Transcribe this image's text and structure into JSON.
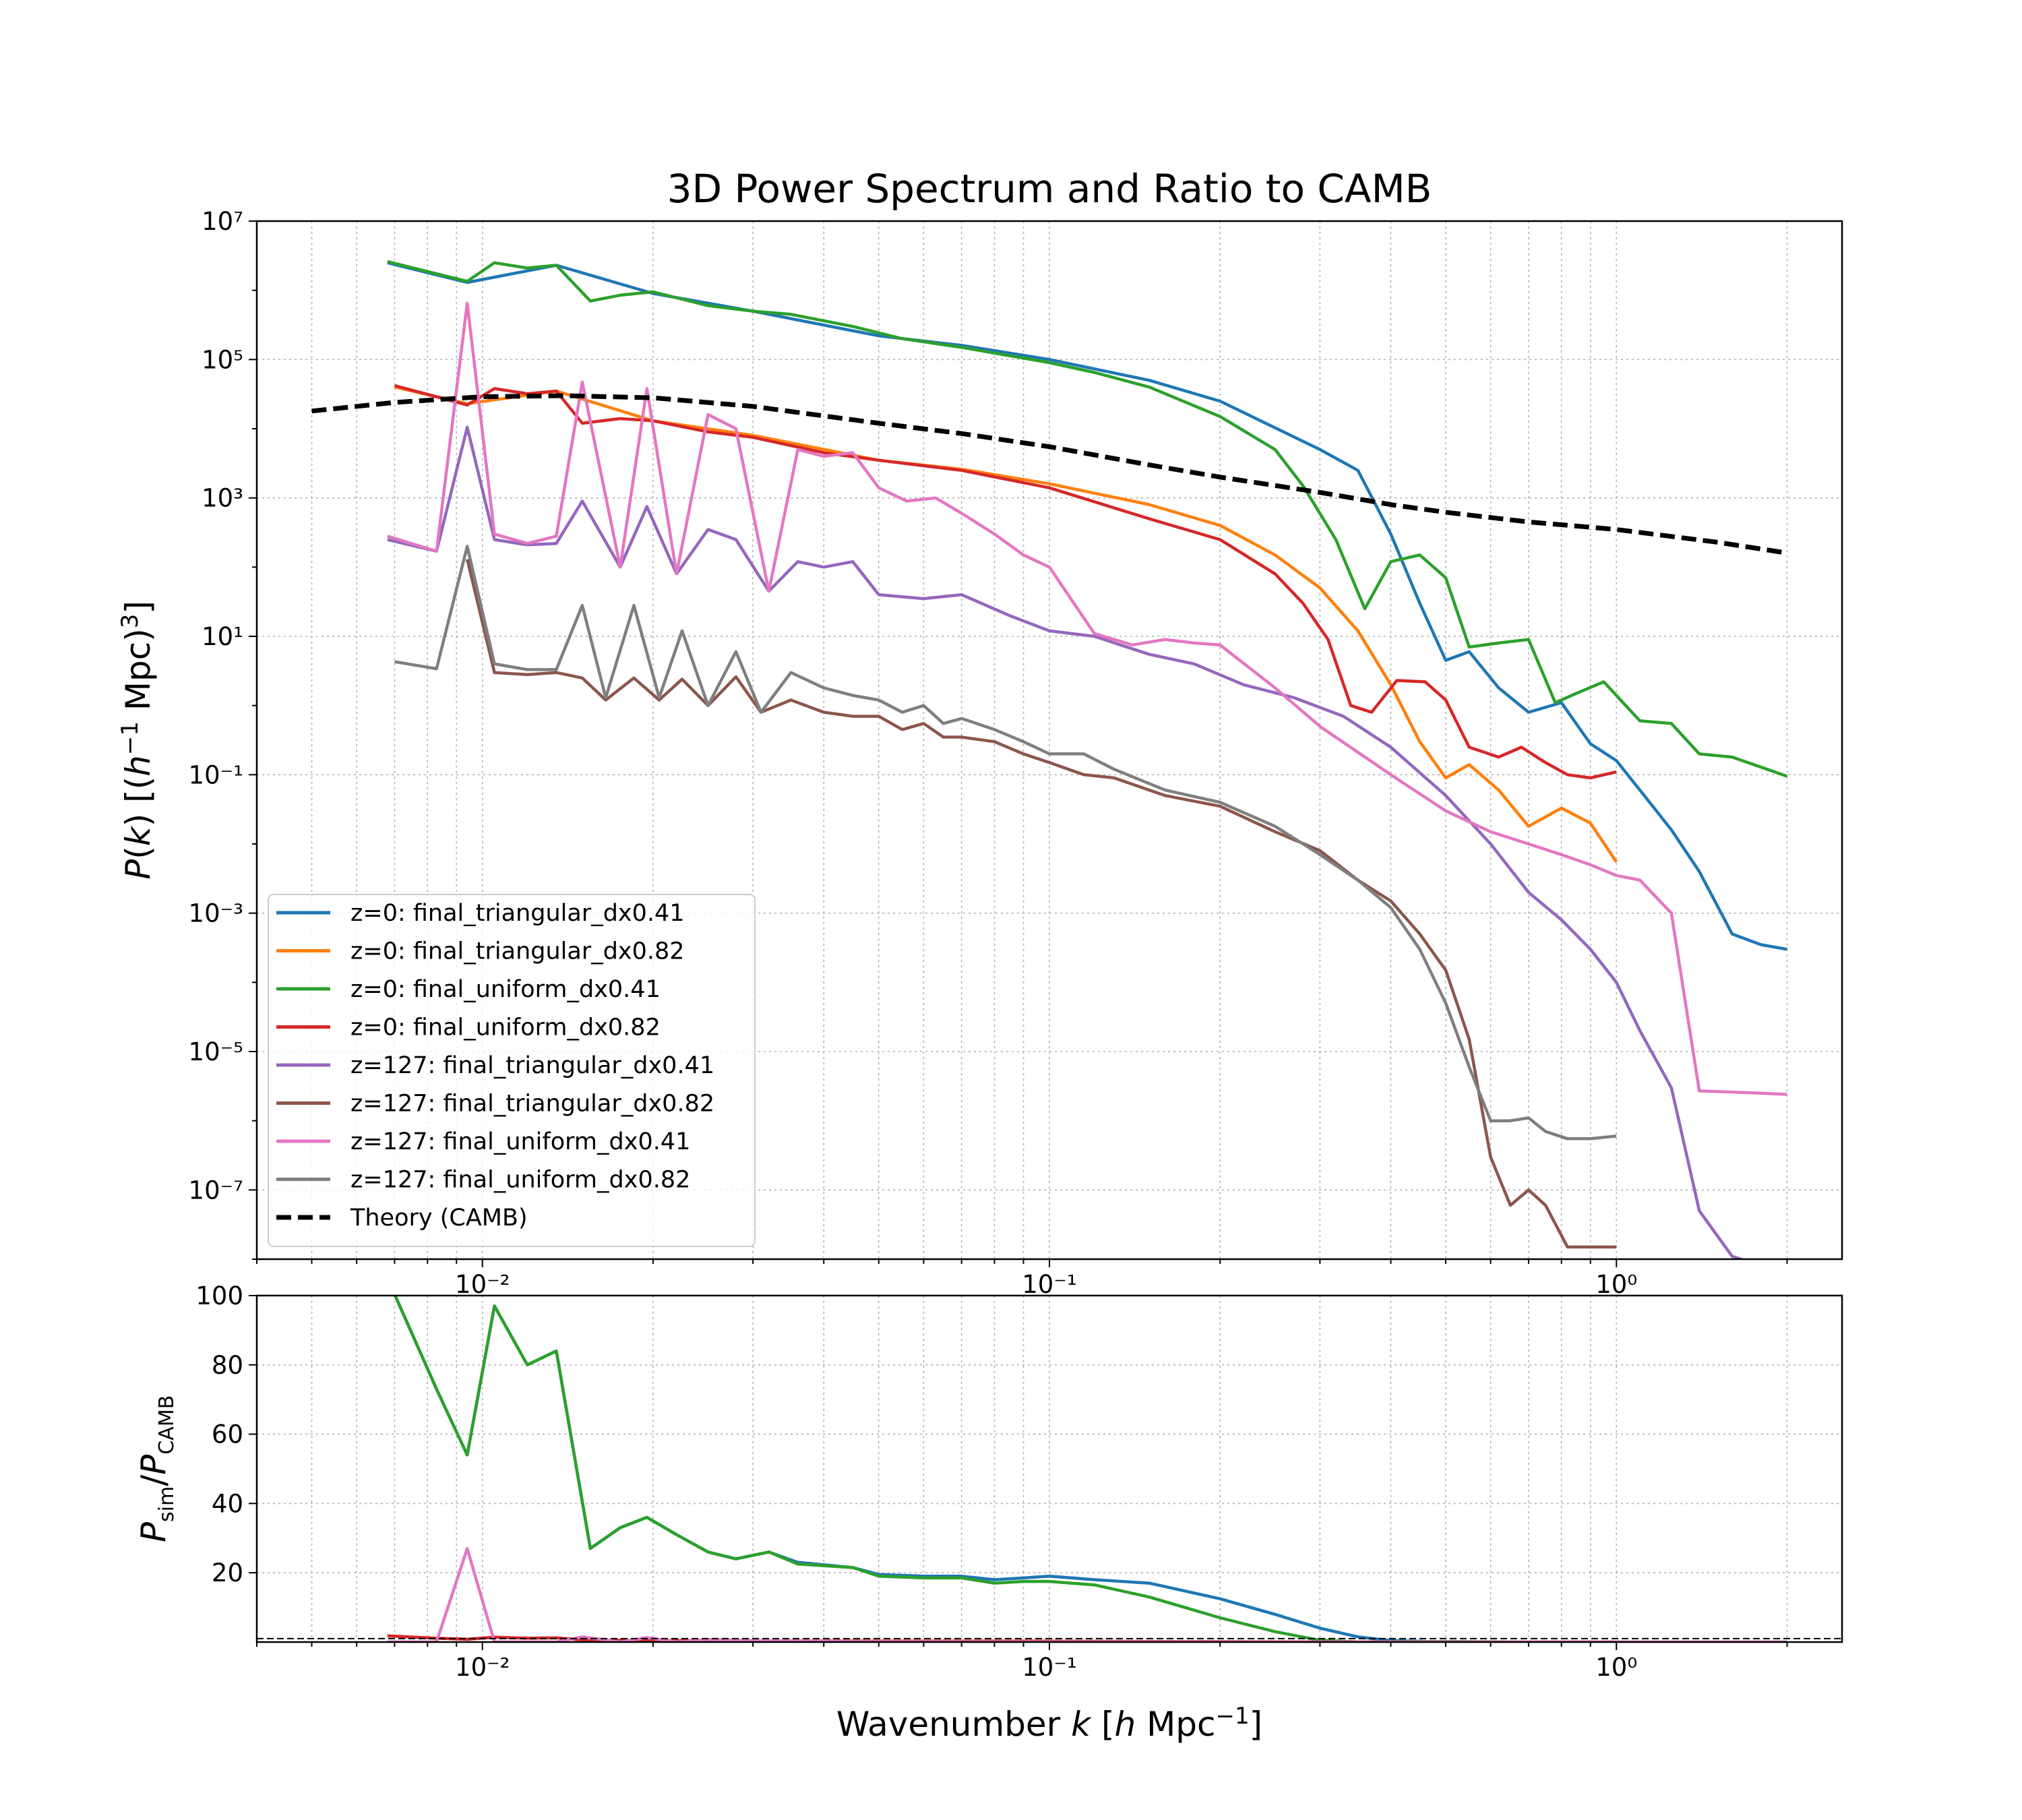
{
  "chart_data": [
    {
      "type": "line",
      "title": "3D Power Spectrum and Ratio to CAMB",
      "ylabel": "P(k) [(h⁻¹ Mpc)³]",
      "xscale": "log",
      "yscale": "log",
      "xlim": [
        0.004,
        2.5
      ],
      "ylim": [
        1e-08,
        10000000.0
      ],
      "x_ticks": [
        "10⁻²",
        "10⁻¹",
        "10⁰"
      ],
      "y_ticks": [
        "10⁻⁷",
        "10⁻⁵",
        "10⁻³",
        "10⁻¹",
        "10¹",
        "10³",
        "10⁵",
        "10⁷"
      ],
      "grid": true,
      "legend_position": "lower-left",
      "series": [
        {
          "name": "z=0: final_triangular_dx0.41",
          "color": "#1f77b4",
          "x": [
            0.0068,
            0.0094,
            0.0135,
            0.02,
            0.03,
            0.05,
            0.07,
            0.1,
            0.15,
            0.2,
            0.3,
            0.35,
            0.4,
            0.45,
            0.5,
            0.55,
            0.62,
            0.7,
            0.8,
            0.9,
            1.0,
            1.1,
            1.25,
            1.4,
            1.6,
            1.8,
            2.0
          ],
          "y": [
            2500000.0,
            1300000.0,
            2300000.0,
            900000.0,
            500000.0,
            220000.0,
            160000.0,
            100000.0,
            50000.0,
            25000.0,
            5000.0,
            2500.0,
            300,
            30,
            4.5,
            6,
            1.8,
            0.8,
            1.1,
            0.28,
            0.16,
            0.06,
            0.016,
            0.004,
            0.0005,
            0.00035,
            0.0003
          ]
        },
        {
          "name": "z=0: final_triangular_dx0.82",
          "color": "#ff7f0e",
          "x": [
            0.007,
            0.0094,
            0.0135,
            0.02,
            0.03,
            0.05,
            0.07,
            0.1,
            0.15,
            0.2,
            0.25,
            0.3,
            0.35,
            0.4,
            0.45,
            0.5,
            0.55,
            0.62,
            0.7,
            0.8,
            0.9,
            1.0
          ],
          "y": [
            40000.0,
            23000.0,
            35000.0,
            13000.0,
            8000.0,
            3500.0,
            2600.0,
            1600.0,
            800,
            400,
            150,
            50,
            12,
            2,
            0.3,
            0.09,
            0.14,
            0.06,
            0.018,
            0.033,
            0.02,
            0.0055
          ]
        },
        {
          "name": "z=0: final_uniform_dx0.41",
          "color": "#2ca02c",
          "x": [
            0.0068,
            0.0094,
            0.0105,
            0.012,
            0.0135,
            0.0155,
            0.0175,
            0.02,
            0.025,
            0.03,
            0.035,
            0.045,
            0.055,
            0.07,
            0.1,
            0.12,
            0.15,
            0.2,
            0.25,
            0.28,
            0.32,
            0.36,
            0.4,
            0.45,
            0.5,
            0.55,
            0.62,
            0.7,
            0.78,
            0.85,
            0.95,
            1.1,
            1.25,
            1.4,
            1.6,
            2.0
          ],
          "y": [
            2600000.0,
            1350000.0,
            2500000.0,
            2100000.0,
            2300000.0,
            700000.0,
            850000.0,
            950000.0,
            600000.0,
            500000.0,
            450000.0,
            300000.0,
            200000.0,
            150000.0,
            90000.0,
            65000.0,
            40000.0,
            15000.0,
            5000.0,
            1500.0,
            250,
            25,
            120,
            150,
            70,
            7,
            8,
            9,
            1.1,
            1.5,
            2.2,
            0.6,
            0.55,
            0.2,
            0.18,
            0.095
          ]
        },
        {
          "name": "z=0: final_uniform_dx0.82",
          "color": "#d62728",
          "x": [
            0.007,
            0.0094,
            0.0105,
            0.012,
            0.0135,
            0.015,
            0.0175,
            0.02,
            0.025,
            0.03,
            0.04,
            0.05,
            0.07,
            0.1,
            0.15,
            0.2,
            0.25,
            0.28,
            0.31,
            0.34,
            0.37,
            0.41,
            0.46,
            0.5,
            0.55,
            0.62,
            0.68,
            0.75,
            0.82,
            0.9,
            1.0
          ],
          "y": [
            42000.0,
            22000.0,
            38000.0,
            32000.0,
            35000.0,
            12000.0,
            14000.0,
            13000.0,
            9000.0,
            7500.0,
            4500.0,
            3500.0,
            2500.0,
            1400.0,
            500,
            250,
            80,
            30,
            9,
            1,
            0.8,
            2.3,
            2.2,
            1.2,
            0.25,
            0.18,
            0.25,
            0.15,
            0.1,
            0.09,
            0.11
          ]
        },
        {
          "name": "z=127: final_triangular_dx0.41",
          "color": "#9467bd",
          "x": [
            0.0068,
            0.0083,
            0.0094,
            0.0105,
            0.012,
            0.0135,
            0.015,
            0.0175,
            0.0195,
            0.022,
            0.025,
            0.028,
            0.032,
            0.036,
            0.04,
            0.045,
            0.05,
            0.06,
            0.07,
            0.085,
            0.1,
            0.12,
            0.15,
            0.18,
            0.22,
            0.27,
            0.33,
            0.4,
            0.5,
            0.6,
            0.7,
            0.8,
            0.9,
            1.0,
            1.1,
            1.25,
            1.4,
            1.6,
            1.8,
            2.0
          ],
          "y": [
            250,
            170,
            10500.0,
            250,
            210,
            220,
            900,
            100,
            750,
            80,
            350,
            250,
            45,
            120,
            100,
            120,
            40,
            35,
            40,
            20,
            12,
            10,
            5.5,
            4,
            2,
            1.3,
            0.7,
            0.25,
            0.05,
            0.01,
            0.002,
            0.0008,
            0.0003,
            0.0001,
            2e-05,
            3e-06,
            5e-08,
            1.1e-08,
            8e-09,
            6e-09
          ]
        },
        {
          "name": "z=127: final_triangular_dx0.82",
          "color": "#8c564b",
          "x": [
            0.0094,
            0.0105,
            0.012,
            0.0135,
            0.015,
            0.0165,
            0.0185,
            0.0205,
            0.0225,
            0.025,
            0.028,
            0.031,
            0.035,
            0.04,
            0.045,
            0.05,
            0.055,
            0.06,
            0.065,
            0.07,
            0.08,
            0.09,
            0.1,
            0.115,
            0.13,
            0.16,
            0.2,
            0.25,
            0.3,
            0.35,
            0.4,
            0.45,
            0.5,
            0.55,
            0.6,
            0.65,
            0.7,
            0.75,
            0.82,
            0.9,
            1.0
          ],
          "y": [
            130,
            3,
            2.8,
            3,
            2.5,
            1.2,
            2.5,
            1.2,
            2.4,
            1.0,
            2.6,
            0.8,
            1.2,
            0.8,
            0.7,
            0.7,
            0.45,
            0.55,
            0.35,
            0.35,
            0.3,
            0.2,
            0.15,
            0.1,
            0.09,
            0.05,
            0.035,
            0.015,
            0.008,
            0.003,
            0.0015,
            0.0005,
            0.00015,
            1.5e-05,
            3e-07,
            6e-08,
            1e-07,
            6e-08,
            1.5e-08,
            1.5e-08,
            1.5e-08
          ]
        },
        {
          "name": "z=127: final_uniform_dx0.41",
          "color": "#e377c2",
          "x": [
            0.0068,
            0.0083,
            0.0094,
            0.0105,
            0.012,
            0.0135,
            0.015,
            0.0175,
            0.0195,
            0.022,
            0.025,
            0.028,
            0.032,
            0.036,
            0.04,
            0.045,
            0.05,
            0.056,
            0.063,
            0.07,
            0.08,
            0.09,
            0.1,
            0.12,
            0.14,
            0.16,
            0.18,
            0.2,
            0.25,
            0.3,
            0.4,
            0.5,
            0.6,
            0.7,
            0.8,
            0.9,
            1.0,
            1.1,
            1.25,
            1.4,
            1.6,
            1.8,
            2.0
          ],
          "y": [
            280,
            170,
            650000.0,
            300,
            220,
            280,
            47000.0,
            100,
            38000.0,
            80,
            16000.0,
            10000.0,
            45,
            5000.0,
            4000.0,
            4500.0,
            1400.0,
            900,
            1000,
            600,
            300,
            150,
            100,
            11,
            7.5,
            9,
            8,
            7.5,
            1.8,
            0.5,
            0.1,
            0.03,
            0.015,
            0.01,
            0.007,
            0.005,
            0.0035,
            0.003,
            0.001,
            2.7e-06,
            2.6e-06,
            2.5e-06,
            2.4e-06
          ]
        },
        {
          "name": "z=127: final_uniform_dx0.82",
          "color": "#7f7f7f",
          "x": [
            0.007,
            0.0083,
            0.0094,
            0.0105,
            0.012,
            0.0135,
            0.015,
            0.0165,
            0.0185,
            0.0205,
            0.0225,
            0.025,
            0.028,
            0.031,
            0.035,
            0.04,
            0.045,
            0.05,
            0.055,
            0.06,
            0.065,
            0.07,
            0.08,
            0.09,
            0.1,
            0.115,
            0.13,
            0.16,
            0.2,
            0.25,
            0.3,
            0.35,
            0.4,
            0.45,
            0.5,
            0.55,
            0.6,
            0.65,
            0.7,
            0.75,
            0.82,
            0.9,
            1.0
          ],
          "y": [
            4.3,
            3.4,
            200,
            4,
            3.3,
            3.3,
            28,
            1.3,
            28,
            1.3,
            12,
            1.0,
            6,
            0.8,
            3,
            1.8,
            1.4,
            1.2,
            0.8,
            1.0,
            0.55,
            0.65,
            0.45,
            0.3,
            0.2,
            0.2,
            0.12,
            0.06,
            0.04,
            0.018,
            0.007,
            0.003,
            0.0012,
            0.0003,
            5e-05,
            6e-06,
            1e-06,
            1e-06,
            1.1e-06,
            7e-07,
            5.5e-07,
            5.5e-07,
            6e-07
          ]
        },
        {
          "name": "Theory (CAMB)",
          "color": "#000000",
          "dashed": true,
          "x": [
            0.005,
            0.007,
            0.01,
            0.014,
            0.02,
            0.03,
            0.05,
            0.07,
            0.1,
            0.15,
            0.2,
            0.3,
            0.4,
            0.5,
            0.7,
            1.0,
            1.5,
            2.0
          ],
          "y": [
            18000.0,
            24000.0,
            29000.0,
            30000.0,
            28000.0,
            21000.0,
            12000.0,
            8500.0,
            5500.0,
            3000.0,
            2000.0,
            1200.0,
            800,
            620,
            450,
            350,
            230,
            160
          ]
        }
      ]
    },
    {
      "type": "line",
      "ylabel": "P_sim / P_CAMB",
      "xlabel": "Wavenumber k [h Mpc⁻¹]",
      "xscale": "log",
      "xlim": [
        0.004,
        2.5
      ],
      "ylim": [
        0,
        100
      ],
      "x_ticks": [
        "10⁻²",
        "10⁻¹",
        "10⁰"
      ],
      "y_ticks": [
        "20",
        "40",
        "60",
        "80",
        "100"
      ],
      "grid": true,
      "reference_line": 1,
      "series": [
        {
          "color": "#1f77b4",
          "x": [
            0.0068,
            0.0083,
            0.0094,
            0.0105,
            0.012,
            0.0135,
            0.0155,
            0.0175,
            0.0195,
            0.022,
            0.025,
            0.028,
            0.032,
            0.036,
            0.045,
            0.05,
            0.06,
            0.07,
            0.08,
            0.09,
            0.1,
            0.12,
            0.15,
            0.2,
            0.25,
            0.3,
            0.35,
            0.4,
            0.5,
            0.7,
            1.0,
            1.5,
            2.0
          ],
          "y": [
            110,
            73,
            54,
            97,
            80,
            84,
            27,
            33,
            36,
            31,
            26,
            24,
            26,
            23,
            21.5,
            19.5,
            19,
            19,
            18,
            18.5,
            19,
            18,
            17,
            12.5,
            8,
            4,
            1.5,
            0.4,
            0.02,
            0.004,
            0.001,
            0.0001,
            2e-05
          ]
        },
        {
          "color": "#2ca02c",
          "x": [
            0.0068,
            0.0083,
            0.0094,
            0.0105,
            0.012,
            0.0135,
            0.0155,
            0.0175,
            0.0195,
            0.022,
            0.025,
            0.028,
            0.032,
            0.036,
            0.045,
            0.05,
            0.06,
            0.07,
            0.08,
            0.09,
            0.1,
            0.12,
            0.15,
            0.2,
            0.25,
            0.3,
            0.35,
            0.4,
            0.5,
            0.7,
            1.0,
            1.5,
            2.0
          ],
          "y": [
            110,
            73,
            54,
            97,
            80,
            84,
            27,
            33,
            36,
            31,
            26,
            24,
            26,
            22.5,
            21.5,
            19,
            18.5,
            18.5,
            17,
            17.5,
            17.5,
            16.5,
            13,
            7,
            3,
            0.5,
            0.05,
            0.1,
            0.15,
            0.02,
            0.005,
            0.002,
            0.0006
          ]
        },
        {
          "color": "#d62728",
          "x": [
            0.0068,
            0.0083,
            0.0094,
            0.0105,
            0.012,
            0.0135,
            0.0155,
            0.0175,
            0.02,
            0.03,
            0.05,
            0.1,
            0.2,
            0.5,
            1.0
          ],
          "y": [
            1.8,
            1.1,
            0.8,
            1.4,
            1.1,
            1.2,
            0.45,
            0.5,
            0.45,
            0.35,
            0.28,
            0.25,
            0.12,
            0.002,
            0.0003
          ]
        },
        {
          "color": "#e377c2",
          "x": [
            0.0068,
            0.0083,
            0.0094,
            0.0105,
            0.012,
            0.0135,
            0.015,
            0.0175,
            0.0195,
            0.022,
            0.025,
            0.03,
            0.05,
            0.1,
            0.2,
            0.5,
            1.0,
            2.0
          ],
          "y": [
            0.01,
            0.01,
            27,
            0.01,
            0.01,
            0.01,
            1.5,
            0.01,
            1.3,
            0.01,
            0.7,
            0.4,
            0.1,
            0.02,
            0.004,
            5e-05,
            1e-05,
            1e-05
          ]
        }
      ]
    }
  ]
}
